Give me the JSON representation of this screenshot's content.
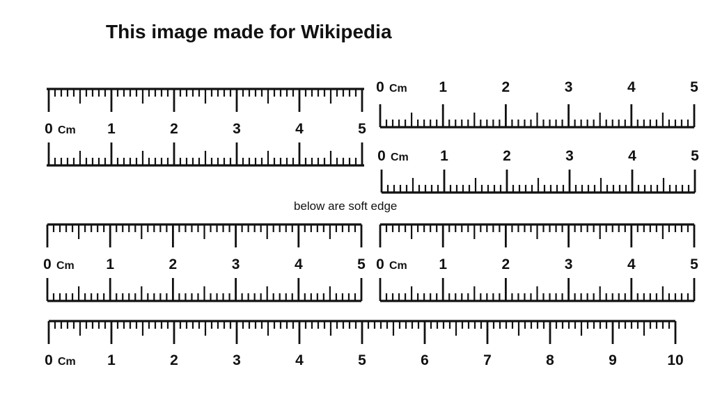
{
  "title": "This image made for Wikipedia",
  "note": "below are soft edge",
  "unit_label": "Cm",
  "colors": {
    "ink": "#111111",
    "background": "#ffffff"
  },
  "rulers": [
    {
      "name": "ruler-1",
      "max_cm": 5,
      "minor_per_cm": 10,
      "layout": "two-edge",
      "labels": [
        "0",
        "1",
        "2",
        "3",
        "4",
        "5"
      ]
    },
    {
      "name": "ruler-2",
      "max_cm": 5,
      "minor_per_cm": 10,
      "layout": "single-edge-labels-above",
      "labels": [
        "0",
        "1",
        "2",
        "3",
        "4",
        "5"
      ]
    },
    {
      "name": "ruler-3",
      "max_cm": 5,
      "minor_per_cm": 10,
      "layout": "single-edge-labels-above",
      "labels": [
        "0",
        "1",
        "2",
        "3",
        "4",
        "5"
      ]
    },
    {
      "name": "ruler-4",
      "max_cm": 5,
      "minor_per_cm": 10,
      "layout": "two-edge-soft",
      "labels": [
        "0",
        "1",
        "2",
        "3",
        "4",
        "5"
      ]
    },
    {
      "name": "ruler-5",
      "max_cm": 5,
      "minor_per_cm": 10,
      "layout": "two-edge-soft",
      "labels": [
        "0",
        "1",
        "2",
        "3",
        "4",
        "5"
      ]
    },
    {
      "name": "ruler-6",
      "max_cm": 10,
      "minor_per_cm": 10,
      "layout": "one-edge-labels-below",
      "labels": [
        "0",
        "1",
        "2",
        "3",
        "4",
        "5",
        "6",
        "7",
        "8",
        "9",
        "10"
      ]
    }
  ]
}
